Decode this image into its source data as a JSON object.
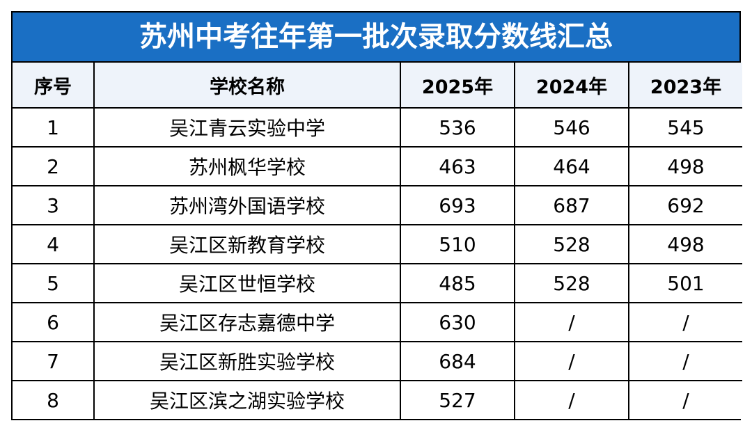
{
  "title": "苏州中考往年第一批次录取分数线汇总",
  "colors": {
    "title_bg": "#1a6fc4",
    "header_bg": "#eef3fa",
    "border": "#000000"
  },
  "table": {
    "headers": [
      "序号",
      "学校名称",
      "2025年",
      "2024年",
      "2023年"
    ],
    "rows": [
      [
        "1",
        "吴江青云实验中学",
        "536",
        "546",
        "545"
      ],
      [
        "2",
        "苏州枫华学校",
        "463",
        "464",
        "498"
      ],
      [
        "3",
        "苏州湾外国语学校",
        "693",
        "687",
        "692"
      ],
      [
        "4",
        "吴江区新教育学校",
        "510",
        "528",
        "498"
      ],
      [
        "5",
        "吴江区世恒学校",
        "485",
        "528",
        "501"
      ],
      [
        "6",
        "吴江区存志嘉德中学",
        "630",
        "/",
        "/"
      ],
      [
        "7",
        "吴江区新胜实验学校",
        "684",
        "/",
        "/"
      ],
      [
        "8",
        "吴江区滨之湖实验学校",
        "527",
        "/",
        "/"
      ]
    ]
  }
}
